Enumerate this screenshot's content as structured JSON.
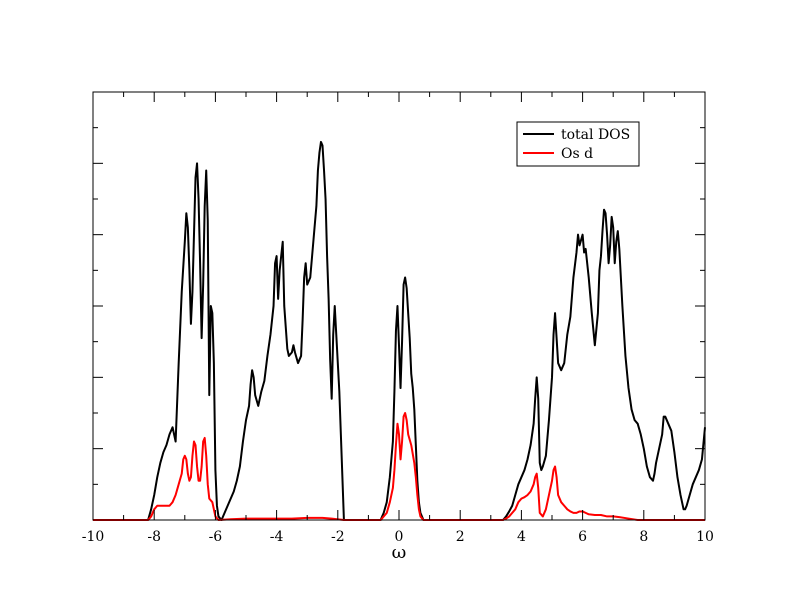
{
  "chart_data": {
    "type": "line",
    "title": "",
    "xlabel": "ω",
    "ylabel": "",
    "xlim": [
      -10,
      10
    ],
    "ylim": [
      0,
      6
    ],
    "x_ticks": [
      -10,
      -8,
      -6,
      -4,
      -2,
      0,
      2,
      4,
      6,
      8,
      10
    ],
    "x_tick_labels": [
      "-10",
      "-8",
      "-6",
      "-4",
      "-2",
      "0",
      "2",
      "4",
      "6",
      "8",
      "10"
    ],
    "y_ticks": [
      0,
      1,
      2,
      3,
      4,
      5,
      6
    ],
    "y_tick_labels_shown": false,
    "grid": false,
    "legend_position": "top-right",
    "series": [
      {
        "name": "total DOS",
        "color": "#000000",
        "points": [
          [
            -10,
            0
          ],
          [
            -8.2,
            0
          ],
          [
            -8.1,
            0.15
          ],
          [
            -8.0,
            0.35
          ],
          [
            -7.9,
            0.6
          ],
          [
            -7.8,
            0.8
          ],
          [
            -7.7,
            0.95
          ],
          [
            -7.6,
            1.05
          ],
          [
            -7.5,
            1.2
          ],
          [
            -7.4,
            1.3
          ],
          [
            -7.3,
            1.1
          ],
          [
            -7.2,
            2.2
          ],
          [
            -7.1,
            3.2
          ],
          [
            -7.0,
            3.9
          ],
          [
            -6.95,
            4.3
          ],
          [
            -6.9,
            4.1
          ],
          [
            -6.85,
            3.5
          ],
          [
            -6.8,
            2.75
          ],
          [
            -6.75,
            3.2
          ],
          [
            -6.7,
            4.0
          ],
          [
            -6.65,
            4.8
          ],
          [
            -6.6,
            5.0
          ],
          [
            -6.55,
            4.5
          ],
          [
            -6.5,
            3.6
          ],
          [
            -6.45,
            2.55
          ],
          [
            -6.4,
            3.3
          ],
          [
            -6.35,
            4.4
          ],
          [
            -6.3,
            4.9
          ],
          [
            -6.25,
            4.2
          ],
          [
            -6.2,
            1.75
          ],
          [
            -6.15,
            3.0
          ],
          [
            -6.1,
            2.9
          ],
          [
            -6.05,
            2.2
          ],
          [
            -6.0,
            0.7
          ],
          [
            -5.95,
            0.2
          ],
          [
            -5.9,
            0.05
          ],
          [
            -5.8,
            0.0
          ],
          [
            -5.7,
            0.1
          ],
          [
            -5.6,
            0.2
          ],
          [
            -5.5,
            0.3
          ],
          [
            -5.4,
            0.4
          ],
          [
            -5.3,
            0.55
          ],
          [
            -5.2,
            0.75
          ],
          [
            -5.1,
            1.1
          ],
          [
            -5.0,
            1.4
          ],
          [
            -4.95,
            1.5
          ],
          [
            -4.9,
            1.6
          ],
          [
            -4.85,
            1.9
          ],
          [
            -4.8,
            2.1
          ],
          [
            -4.75,
            2.0
          ],
          [
            -4.7,
            1.75
          ],
          [
            -4.6,
            1.6
          ],
          [
            -4.5,
            1.8
          ],
          [
            -4.4,
            1.95
          ],
          [
            -4.3,
            2.3
          ],
          [
            -4.2,
            2.6
          ],
          [
            -4.1,
            3.0
          ],
          [
            -4.05,
            3.6
          ],
          [
            -4.0,
            3.7
          ],
          [
            -3.95,
            3.1
          ],
          [
            -3.9,
            3.5
          ],
          [
            -3.8,
            3.9
          ],
          [
            -3.75,
            3.0
          ],
          [
            -3.7,
            2.7
          ],
          [
            -3.65,
            2.4
          ],
          [
            -3.6,
            2.3
          ],
          [
            -3.5,
            2.35
          ],
          [
            -3.45,
            2.45
          ],
          [
            -3.4,
            2.35
          ],
          [
            -3.3,
            2.2
          ],
          [
            -3.2,
            2.3
          ],
          [
            -3.15,
            2.8
          ],
          [
            -3.1,
            3.4
          ],
          [
            -3.05,
            3.6
          ],
          [
            -3.0,
            3.3
          ],
          [
            -2.9,
            3.4
          ],
          [
            -2.8,
            3.9
          ],
          [
            -2.7,
            4.4
          ],
          [
            -2.65,
            4.9
          ],
          [
            -2.6,
            5.15
          ],
          [
            -2.55,
            5.3
          ],
          [
            -2.5,
            5.25
          ],
          [
            -2.45,
            4.9
          ],
          [
            -2.4,
            4.5
          ],
          [
            -2.35,
            3.7
          ],
          [
            -2.3,
            3.1
          ],
          [
            -2.25,
            2.25
          ],
          [
            -2.2,
            1.7
          ],
          [
            -2.15,
            2.6
          ],
          [
            -2.1,
            3.0
          ],
          [
            -2.05,
            2.6
          ],
          [
            -2.0,
            2.2
          ],
          [
            -1.95,
            1.8
          ],
          [
            -1.9,
            1.2
          ],
          [
            -1.85,
            0.6
          ],
          [
            -1.8,
            0
          ],
          [
            -0.6,
            0
          ],
          [
            -0.5,
            0.1
          ],
          [
            -0.4,
            0.25
          ],
          [
            -0.3,
            0.6
          ],
          [
            -0.2,
            1.1
          ],
          [
            -0.15,
            1.8
          ],
          [
            -0.1,
            2.65
          ],
          [
            -0.05,
            3.0
          ],
          [
            0.0,
            2.45
          ],
          [
            0.05,
            1.85
          ],
          [
            0.1,
            2.5
          ],
          [
            0.15,
            3.3
          ],
          [
            0.2,
            3.4
          ],
          [
            0.25,
            3.25
          ],
          [
            0.3,
            2.9
          ],
          [
            0.35,
            2.55
          ],
          [
            0.4,
            2.05
          ],
          [
            0.45,
            1.85
          ],
          [
            0.5,
            1.55
          ],
          [
            0.55,
            1.05
          ],
          [
            0.6,
            0.55
          ],
          [
            0.65,
            0.25
          ],
          [
            0.7,
            0.1
          ],
          [
            0.8,
            0
          ],
          [
            3.4,
            0
          ],
          [
            3.5,
            0.05
          ],
          [
            3.6,
            0.12
          ],
          [
            3.7,
            0.2
          ],
          [
            3.8,
            0.35
          ],
          [
            3.9,
            0.5
          ],
          [
            4.0,
            0.6
          ],
          [
            4.1,
            0.7
          ],
          [
            4.2,
            0.85
          ],
          [
            4.3,
            1.05
          ],
          [
            4.4,
            1.35
          ],
          [
            4.45,
            1.7
          ],
          [
            4.5,
            2.0
          ],
          [
            4.55,
            1.7
          ],
          [
            4.6,
            0.8
          ],
          [
            4.65,
            0.7
          ],
          [
            4.7,
            0.75
          ],
          [
            4.8,
            0.9
          ],
          [
            4.9,
            1.4
          ],
          [
            5.0,
            2.0
          ],
          [
            5.05,
            2.6
          ],
          [
            5.1,
            2.9
          ],
          [
            5.15,
            2.55
          ],
          [
            5.2,
            2.2
          ],
          [
            5.3,
            2.1
          ],
          [
            5.4,
            2.2
          ],
          [
            5.5,
            2.6
          ],
          [
            5.6,
            2.85
          ],
          [
            5.7,
            3.4
          ],
          [
            5.8,
            3.75
          ],
          [
            5.85,
            4.0
          ],
          [
            5.9,
            3.85
          ],
          [
            6.0,
            4.0
          ],
          [
            6.05,
            3.75
          ],
          [
            6.1,
            3.8
          ],
          [
            6.2,
            3.4
          ],
          [
            6.3,
            2.9
          ],
          [
            6.4,
            2.45
          ],
          [
            6.5,
            2.9
          ],
          [
            6.55,
            3.5
          ],
          [
            6.6,
            3.7
          ],
          [
            6.65,
            4.05
          ],
          [
            6.7,
            4.35
          ],
          [
            6.75,
            4.3
          ],
          [
            6.8,
            4.0
          ],
          [
            6.85,
            3.6
          ],
          [
            6.9,
            3.85
          ],
          [
            6.95,
            4.25
          ],
          [
            7.0,
            4.1
          ],
          [
            7.05,
            3.6
          ],
          [
            7.1,
            3.9
          ],
          [
            7.15,
            4.05
          ],
          [
            7.2,
            3.8
          ],
          [
            7.3,
            3.0
          ],
          [
            7.4,
            2.3
          ],
          [
            7.5,
            1.85
          ],
          [
            7.6,
            1.55
          ],
          [
            7.7,
            1.4
          ],
          [
            7.8,
            1.35
          ],
          [
            7.9,
            1.2
          ],
          [
            8.0,
            1.0
          ],
          [
            8.1,
            0.75
          ],
          [
            8.2,
            0.6
          ],
          [
            8.3,
            0.55
          ],
          [
            8.35,
            0.65
          ],
          [
            8.4,
            0.8
          ],
          [
            8.5,
            1.0
          ],
          [
            8.6,
            1.2
          ],
          [
            8.65,
            1.45
          ],
          [
            8.7,
            1.45
          ],
          [
            8.8,
            1.35
          ],
          [
            8.9,
            1.25
          ],
          [
            9.0,
            0.95
          ],
          [
            9.1,
            0.6
          ],
          [
            9.2,
            0.35
          ],
          [
            9.3,
            0.15
          ],
          [
            9.35,
            0.15
          ],
          [
            9.4,
            0.2
          ],
          [
            9.5,
            0.35
          ],
          [
            9.6,
            0.5
          ],
          [
            9.7,
            0.6
          ],
          [
            9.8,
            0.7
          ],
          [
            9.9,
            0.85
          ],
          [
            10.0,
            1.3
          ]
        ]
      },
      {
        "name": "Os d",
        "color": "#ff0000",
        "points": [
          [
            -10,
            0
          ],
          [
            -8.2,
            0
          ],
          [
            -8.1,
            0.05
          ],
          [
            -8.0,
            0.15
          ],
          [
            -7.9,
            0.2
          ],
          [
            -7.7,
            0.2
          ],
          [
            -7.5,
            0.2
          ],
          [
            -7.4,
            0.25
          ],
          [
            -7.3,
            0.35
          ],
          [
            -7.2,
            0.5
          ],
          [
            -7.1,
            0.65
          ],
          [
            -7.05,
            0.85
          ],
          [
            -7.0,
            0.9
          ],
          [
            -6.95,
            0.85
          ],
          [
            -6.9,
            0.65
          ],
          [
            -6.85,
            0.55
          ],
          [
            -6.8,
            0.6
          ],
          [
            -6.75,
            0.9
          ],
          [
            -6.7,
            1.1
          ],
          [
            -6.65,
            1.05
          ],
          [
            -6.6,
            0.75
          ],
          [
            -6.55,
            0.55
          ],
          [
            -6.5,
            0.55
          ],
          [
            -6.45,
            0.75
          ],
          [
            -6.4,
            1.1
          ],
          [
            -6.35,
            1.15
          ],
          [
            -6.3,
            0.9
          ],
          [
            -6.25,
            0.5
          ],
          [
            -6.2,
            0.3
          ],
          [
            -6.1,
            0.25
          ],
          [
            -6.05,
            0.15
          ],
          [
            -6.0,
            0.05
          ],
          [
            -5.9,
            0
          ],
          [
            -5.5,
            0.01
          ],
          [
            -5.0,
            0.02
          ],
          [
            -4.5,
            0.02
          ],
          [
            -4.0,
            0.02
          ],
          [
            -3.5,
            0.02
          ],
          [
            -3.0,
            0.03
          ],
          [
            -2.5,
            0.03
          ],
          [
            -2.2,
            0.02
          ],
          [
            -1.8,
            0
          ],
          [
            -0.6,
            0
          ],
          [
            -0.5,
            0.05
          ],
          [
            -0.4,
            0.1
          ],
          [
            -0.3,
            0.25
          ],
          [
            -0.2,
            0.45
          ],
          [
            -0.15,
            0.7
          ],
          [
            -0.1,
            1.05
          ],
          [
            -0.05,
            1.35
          ],
          [
            0.0,
            1.2
          ],
          [
            0.05,
            0.85
          ],
          [
            0.1,
            1.1
          ],
          [
            0.15,
            1.45
          ],
          [
            0.2,
            1.5
          ],
          [
            0.25,
            1.4
          ],
          [
            0.3,
            1.2
          ],
          [
            0.4,
            1.05
          ],
          [
            0.5,
            0.8
          ],
          [
            0.55,
            0.6
          ],
          [
            0.6,
            0.35
          ],
          [
            0.65,
            0.15
          ],
          [
            0.7,
            0.05
          ],
          [
            0.8,
            0
          ],
          [
            3.4,
            0
          ],
          [
            3.5,
            0.02
          ],
          [
            3.6,
            0.05
          ],
          [
            3.7,
            0.1
          ],
          [
            3.8,
            0.15
          ],
          [
            3.9,
            0.25
          ],
          [
            4.0,
            0.3
          ],
          [
            4.1,
            0.32
          ],
          [
            4.2,
            0.35
          ],
          [
            4.3,
            0.4
          ],
          [
            4.4,
            0.5
          ],
          [
            4.45,
            0.6
          ],
          [
            4.5,
            0.65
          ],
          [
            4.55,
            0.45
          ],
          [
            4.6,
            0.1
          ],
          [
            4.7,
            0.05
          ],
          [
            4.8,
            0.15
          ],
          [
            4.9,
            0.35
          ],
          [
            5.0,
            0.55
          ],
          [
            5.05,
            0.7
          ],
          [
            5.1,
            0.75
          ],
          [
            5.15,
            0.6
          ],
          [
            5.2,
            0.35
          ],
          [
            5.3,
            0.25
          ],
          [
            5.4,
            0.2
          ],
          [
            5.5,
            0.15
          ],
          [
            5.6,
            0.12
          ],
          [
            5.7,
            0.1
          ],
          [
            5.8,
            0.1
          ],
          [
            5.9,
            0.12
          ],
          [
            6.0,
            0.12
          ],
          [
            6.1,
            0.1
          ],
          [
            6.2,
            0.08
          ],
          [
            6.4,
            0.07
          ],
          [
            6.6,
            0.07
          ],
          [
            6.8,
            0.05
          ],
          [
            7.0,
            0.05
          ],
          [
            7.2,
            0.04
          ],
          [
            7.5,
            0.02
          ],
          [
            7.8,
            0
          ],
          [
            10.0,
            0
          ]
        ]
      }
    ]
  }
}
